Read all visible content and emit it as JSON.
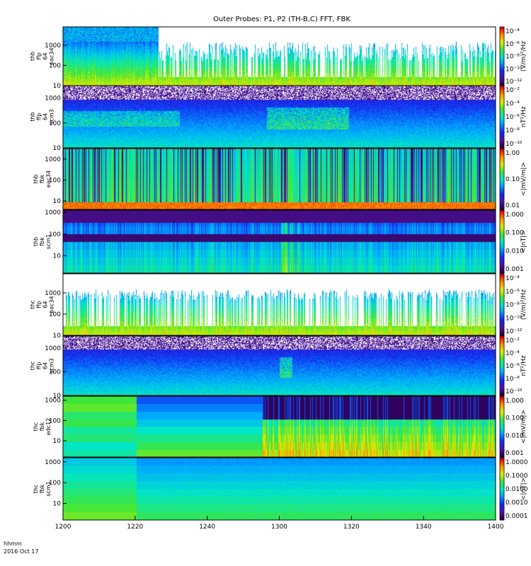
{
  "chart_data": {
    "type": "heatmap",
    "title": "Outer Probes: P1, P2 (TH-B,C) FFT, FBK",
    "time_label_lines": [
      "hhmm",
      "2016 Oct 17"
    ],
    "x": {
      "ticks": [
        "1200",
        "1220",
        "1240",
        "1300",
        "1320",
        "1340",
        "1400"
      ],
      "range": [
        "12:00",
        "14:00"
      ]
    },
    "panels": [
      {
        "id": "thb-ffp-eac34",
        "label_lines": [
          "thb",
          "ffp",
          "64",
          "eac34"
        ],
        "yticks": [
          "1000",
          "100",
          "10"
        ],
        "yticks_log10": [
          3,
          2,
          1
        ],
        "yrange_log10": [
          1,
          3.9
        ],
        "colorbar_label": "(V/m)²/Hz",
        "colorbar_ticks": [
          "10⁻⁴",
          "10⁻⁶",
          "10⁻⁸",
          "10⁻¹⁰",
          "10⁻¹²"
        ],
        "colorbar_range_log10": [
          -13,
          -3.8
        ],
        "kind": "fft_e"
      },
      {
        "id": "thb-ffp-scm3",
        "label_lines": [
          "thb",
          "ffp",
          "64",
          "scm3"
        ],
        "yticks": [
          "1000",
          "100",
          "10"
        ],
        "yticks_log10": [
          3,
          2,
          1
        ],
        "yrange_log10": [
          1,
          3.5
        ],
        "colorbar_label": "nT²/Hz",
        "colorbar_ticks": [
          "10⁻²",
          "10⁻⁴",
          "10⁻⁶",
          "10⁻⁸",
          "10⁻¹⁰"
        ],
        "colorbar_range_log10": [
          -10.5,
          -2
        ],
        "kind": "fft_b"
      },
      {
        "id": "thb-fbk-eac34",
        "label_lines": [
          "thb",
          "fbk",
          "eac34"
        ],
        "yticks": [
          "1000",
          "100",
          "10"
        ],
        "yticks_log10": [
          3,
          2,
          1
        ],
        "yrange_log10": [
          0.6,
          3.5
        ],
        "colorbar_label": "<|mV/m|>",
        "colorbar_ticks": [
          "1.00",
          "0.10",
          "0.01"
        ],
        "colorbar_range_log10": [
          -2.2,
          0.2
        ],
        "kind": "fbk_b1"
      },
      {
        "id": "thb-fbk-scm1",
        "label_lines": [
          "thb",
          "fbk",
          "scm1"
        ],
        "yticks": [
          "1000",
          "100",
          "10"
        ],
        "yticks_log10": [
          3,
          2,
          1
        ],
        "yrange_log10": [
          0.2,
          3.1
        ],
        "colorbar_label": "<|nT|>",
        "colorbar_ticks": [
          "1.000",
          "0.100",
          "0.010",
          "0.001"
        ],
        "colorbar_range_log10": [
          -3,
          0.1
        ],
        "kind": "fbk_b2"
      },
      {
        "id": "thc-ffp-eac34",
        "label_lines": [
          "thc",
          "ffp",
          "64",
          "eac34"
        ],
        "yticks": [
          "1000",
          "100",
          "10"
        ],
        "yticks_log10": [
          3,
          2,
          1
        ],
        "yrange_log10": [
          1,
          3.9
        ],
        "colorbar_label": "(V/m)²/Hz",
        "colorbar_ticks": [
          "10⁻⁴",
          "10⁻⁶",
          "10⁻⁸",
          "10⁻¹⁰",
          "10⁻¹²"
        ],
        "colorbar_range_log10": [
          -13,
          -3.8
        ],
        "kind": "fft_e_c"
      },
      {
        "id": "thc-ffp-scm3",
        "label_lines": [
          "thc",
          "ffp",
          "64",
          "scm3"
        ],
        "yticks": [
          "1000",
          "100",
          "10"
        ],
        "yticks_log10": [
          3,
          2,
          1
        ],
        "yrange_log10": [
          1,
          3.5
        ],
        "colorbar_label": "nT²/Hz",
        "colorbar_ticks": [
          "10⁻²",
          "10⁻⁴",
          "10⁻⁶",
          "10⁻⁸",
          "10⁻¹⁰"
        ],
        "colorbar_range_log10": [
          -10.5,
          -2
        ],
        "kind": "fft_b_c"
      },
      {
        "id": "thc-fbk-edc12",
        "label_lines": [
          "thc",
          "fbk",
          "edc12"
        ],
        "yticks": [
          "1000",
          "100",
          "10"
        ],
        "yticks_log10": [
          3,
          2,
          1
        ],
        "yrange_log10": [
          0.2,
          3.2
        ],
        "colorbar_label": "<|mV/m|>",
        "colorbar_ticks": [
          "1.000",
          "0.100",
          "0.010",
          "0.001"
        ],
        "colorbar_range_log10": [
          -3,
          0.1
        ],
        "kind": "fbk_c1"
      },
      {
        "id": "thc-fbk-scm1",
        "label_lines": [
          "thc",
          "fbk",
          "scm1"
        ],
        "yticks": [
          "1000",
          "100",
          "10"
        ],
        "yticks_log10": [
          3,
          2,
          1
        ],
        "yrange_log10": [
          0.2,
          3.2
        ],
        "colorbar_label": "<|nT|>",
        "colorbar_ticks": [
          "1.0000",
          "0.1000",
          "0.0100",
          "0.0010",
          "0.0001"
        ],
        "colorbar_range_log10": [
          -4.2,
          0.1
        ],
        "kind": "fbk_c2"
      }
    ]
  }
}
